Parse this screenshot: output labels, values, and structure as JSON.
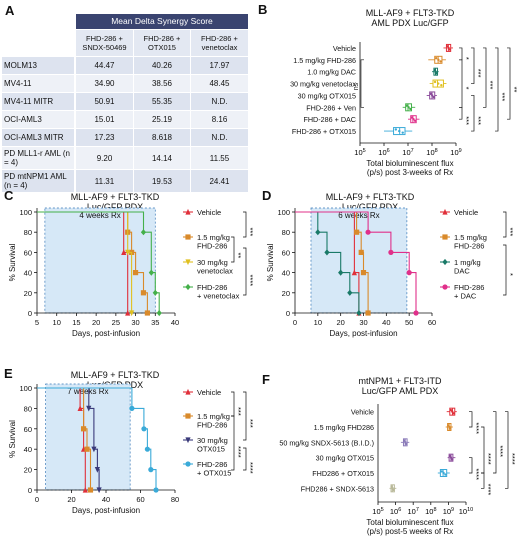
{
  "panels": {
    "A": {
      "letter": "A",
      "header": "Mean Delta Synergy Score",
      "columns": [
        "FHD-286 + SNDX-50469",
        "FHD-286 + OTX015",
        "FHD-286 + venetoclax"
      ],
      "rows": [
        {
          "label": "MOLM13",
          "values": [
            "44.47",
            "40.26",
            "17.97"
          ]
        },
        {
          "label": "MV4-11",
          "values": [
            "34.90",
            "38.56",
            "48.45"
          ]
        },
        {
          "label": "MV4-11 MITR",
          "values": [
            "50.91",
            "55.35",
            "N.D."
          ]
        },
        {
          "label": "OCI-AML3",
          "values": [
            "15.01",
            "25.19",
            "8.16"
          ]
        },
        {
          "label": "OCI-AML3 MITR",
          "values": [
            "17.23",
            "8.618",
            "N.D."
          ]
        },
        {
          "label": "PD MLL1-r AML (n = 4)",
          "values": [
            "9.20",
            "14.14",
            "11.55"
          ]
        },
        {
          "label": "PD mtNPM1 AML (n = 4)",
          "values": [
            "11.31",
            "19.53",
            "24.41"
          ]
        }
      ]
    }
  },
  "chart_data": [
    {
      "panel": "B",
      "type": "box",
      "title": "MLL-AF9 + FLT3-TKD AML PDX Luc/GFP",
      "xlabel": "Total bioluminescent flux (p/s) post 3-weeks of Rx",
      "x_scale": "log",
      "xlim": [
        100000,
        1000000000
      ],
      "x_ticks": [
        "10^5",
        "10^6",
        "10^7",
        "10^8",
        "10^9"
      ],
      "groups": [
        {
          "name": "Vehicle",
          "color": "#e0303a",
          "min": 300000000,
          "q1": 400000000,
          "median": 480000000,
          "q3": 600000000,
          "max": 750000000
        },
        {
          "name": "1.5 mg/kg FHD-286",
          "color": "#d98a2b",
          "min": 70000000,
          "q1": 130000000,
          "median": 180000000,
          "q3": 260000000,
          "max": 380000000
        },
        {
          "name": "1.0 mg/kg DAC",
          "color": "#1a7a68",
          "min": 100000000,
          "q1": 120000000,
          "median": 140000000,
          "q3": 170000000,
          "max": 190000000
        },
        {
          "name": "30 mg/kg venetoclax",
          "color": "#e0c020",
          "min": 80000000,
          "q1": 110000000,
          "median": 170000000,
          "q3": 300000000,
          "max": 400000000
        },
        {
          "name": "30 mg/kg OTX015",
          "color": "#8a4a9a",
          "min": 60000000,
          "q1": 80000000,
          "median": 100000000,
          "q3": 130000000,
          "max": 160000000
        },
        {
          "name": "FHD-286 + Ven",
          "color": "#44b04a",
          "min": 6000000,
          "q1": 8000000,
          "median": 10000000,
          "q3": 14000000,
          "max": 20000000
        },
        {
          "name": "FHD-286 + DAC",
          "color": "#e0308a",
          "min": 10000000,
          "q1": 13000000,
          "median": 16000000,
          "q3": 22000000,
          "max": 30000000
        },
        {
          "name": "FHD-286 + OTX015",
          "color": "#3aaad8",
          "min": 1000000,
          "q1": 2500000,
          "median": 4500000,
          "q3": 7500000,
          "max": 15000000
        }
      ],
      "significance": [
        "*",
        "***",
        "***",
        "***",
        "*",
        "***",
        "**",
        "ns",
        "***"
      ]
    },
    {
      "panel": "C",
      "type": "survival",
      "title": "MLL-AF9 + FLT3-TKD Luc/GFP PDX",
      "xlabel": "Days, post-infusion",
      "ylabel": "% Survival",
      "xlim": [
        5,
        40
      ],
      "ylim": [
        0,
        100
      ],
      "x_ticks": [
        5,
        10,
        15,
        20,
        25,
        30,
        35,
        40
      ],
      "y_ticks": [
        0,
        20,
        40,
        60,
        80,
        100
      ],
      "treatment_label": "4 weeks Rx",
      "treatment_range": [
        7,
        35
      ],
      "series": [
        {
          "name": "Vehicle",
          "color": "#e0303a",
          "marker": "triangle",
          "points": [
            [
              5,
              100
            ],
            [
              27,
              100
            ],
            [
              27,
              60
            ],
            [
              28,
              60
            ],
            [
              28,
              0
            ]
          ]
        },
        {
          "name": "1.5 mg/kg FHD-286",
          "color": "#d98a2b",
          "marker": "square",
          "points": [
            [
              5,
              100
            ],
            [
              28,
              100
            ],
            [
              28,
              80
            ],
            [
              29,
              80
            ],
            [
              29,
              60
            ],
            [
              30,
              60
            ],
            [
              30,
              40
            ],
            [
              32,
              40
            ],
            [
              32,
              20
            ],
            [
              33,
              20
            ],
            [
              33,
              0
            ]
          ]
        },
        {
          "name": "30 mg/kg venetoclax",
          "color": "#e0c020",
          "marker": "triangle-down",
          "points": [
            [
              5,
              100
            ],
            [
              28,
              100
            ],
            [
              28,
              60
            ],
            [
              29,
              60
            ],
            [
              29,
              0
            ]
          ]
        },
        {
          "name": "FHD-286 + venetoclax",
          "color": "#44b04a",
          "marker": "diamond",
          "points": [
            [
              5,
              100
            ],
            [
              32,
              100
            ],
            [
              32,
              80
            ],
            [
              34,
              80
            ],
            [
              34,
              40
            ],
            [
              35,
              40
            ],
            [
              35,
              20
            ],
            [
              36,
              20
            ],
            [
              36,
              0
            ]
          ]
        }
      ],
      "significance": [
        "***",
        "***",
        "**",
        "****"
      ]
    },
    {
      "panel": "D",
      "type": "survival",
      "title": "MLL-AF9 + FLT3-TKD Luc/GFP PDX",
      "xlabel": "Days, post-infusion",
      "ylabel": "% Survival",
      "xlim": [
        0,
        60
      ],
      "ylim": [
        0,
        100
      ],
      "x_ticks": [
        0,
        10,
        20,
        30,
        40,
        50,
        60
      ],
      "y_ticks": [
        0,
        20,
        40,
        60,
        80,
        100
      ],
      "treatment_label": "6 weeks Rx",
      "treatment_range": [
        7,
        49
      ],
      "series": [
        {
          "name": "Vehicle",
          "color": "#e0303a",
          "marker": "triangle",
          "points": [
            [
              0,
              100
            ],
            [
              26,
              100
            ],
            [
              26,
              40
            ],
            [
              28,
              40
            ],
            [
              28,
              0
            ]
          ]
        },
        {
          "name": "1.5 mg/kg FHD-286",
          "color": "#d98a2b",
          "marker": "square",
          "points": [
            [
              0,
              100
            ],
            [
              27,
              100
            ],
            [
              27,
              80
            ],
            [
              29,
              80
            ],
            [
              29,
              60
            ],
            [
              30,
              60
            ],
            [
              30,
              40
            ],
            [
              32,
              40
            ],
            [
              32,
              0
            ]
          ]
        },
        {
          "name": "1 mg/kg DAC",
          "color": "#1a7a68",
          "marker": "diamond",
          "points": [
            [
              0,
              100
            ],
            [
              10,
              100
            ],
            [
              10,
              80
            ],
            [
              14,
              80
            ],
            [
              14,
              60
            ],
            [
              20,
              60
            ],
            [
              20,
              40
            ],
            [
              24,
              40
            ],
            [
              24,
              20
            ],
            [
              28,
              20
            ],
            [
              28,
              0
            ]
          ]
        },
        {
          "name": "FHD-286 + DAC",
          "color": "#e0308a",
          "marker": "circle",
          "points": [
            [
              0,
              100
            ],
            [
              32,
              100
            ],
            [
              32,
              80
            ],
            [
              42,
              80
            ],
            [
              42,
              60
            ],
            [
              50,
              60
            ],
            [
              50,
              40
            ],
            [
              53,
              40
            ],
            [
              53,
              0
            ]
          ]
        }
      ],
      "significance": [
        "***",
        "**",
        "*"
      ]
    },
    {
      "panel": "E",
      "type": "survival",
      "title": "MLL-AF9 + FLT3-TKD Luc/GFP PDX",
      "xlabel": "Days, post-infusion",
      "ylabel": "% Survival",
      "xlim": [
        0,
        80
      ],
      "ylim": [
        0,
        100
      ],
      "x_ticks": [
        0,
        20,
        40,
        60,
        80
      ],
      "y_ticks": [
        0,
        20,
        40,
        60,
        80,
        100
      ],
      "treatment_label": "7 weeks Rx",
      "treatment_range": [
        5,
        54
      ],
      "series": [
        {
          "name": "Vehicle",
          "color": "#e0303a",
          "marker": "triangle",
          "points": [
            [
              0,
              100
            ],
            [
              25,
              100
            ],
            [
              25,
              80
            ],
            [
              27,
              80
            ],
            [
              27,
              40
            ],
            [
              28,
              40
            ],
            [
              28,
              0
            ]
          ]
        },
        {
          "name": "1.5 mg/kg FHD-286",
          "color": "#d98a2b",
          "marker": "square",
          "points": [
            [
              0,
              100
            ],
            [
              27,
              100
            ],
            [
              27,
              60
            ],
            [
              29,
              60
            ],
            [
              29,
              40
            ],
            [
              31,
              40
            ],
            [
              31,
              0
            ]
          ]
        },
        {
          "name": "30 mg/kg OTX015",
          "color": "#3a3a7a",
          "marker": "triangle-down",
          "points": [
            [
              0,
              100
            ],
            [
              30,
              100
            ],
            [
              30,
              80
            ],
            [
              33,
              80
            ],
            [
              33,
              40
            ],
            [
              35,
              40
            ],
            [
              35,
              20
            ],
            [
              36,
              20
            ],
            [
              36,
              0
            ]
          ]
        },
        {
          "name": "FHD-286 + OTX015",
          "color": "#3aaad8",
          "marker": "circle",
          "points": [
            [
              0,
              100
            ],
            [
              55,
              100
            ],
            [
              55,
              80
            ],
            [
              62,
              80
            ],
            [
              62,
              60
            ],
            [
              64,
              60
            ],
            [
              64,
              40
            ],
            [
              66,
              40
            ],
            [
              66,
              20
            ],
            [
              69,
              20
            ],
            [
              69,
              0
            ]
          ]
        }
      ],
      "significance": [
        "***",
        "***",
        "****",
        "****"
      ]
    },
    {
      "panel": "F",
      "type": "box",
      "title": "mtNPM1 + FLT3-ITD Luc/GFP AML PDX",
      "xlabel": "Total bioluminescent flux (p/s) post-5 weeks of Rx",
      "x_scale": "log",
      "xlim": [
        100000,
        10000000000
      ],
      "x_ticks": [
        "10^5",
        "10^6",
        "10^7",
        "10^8",
        "10^9",
        "10^10"
      ],
      "groups": [
        {
          "name": "Vehicle",
          "color": "#e0303a",
          "min": 800000000,
          "q1": 1200000000,
          "median": 1700000000,
          "q3": 2300000000,
          "max": 3000000000
        },
        {
          "name": "1.5 mg/kg FHD286",
          "color": "#d98a2b",
          "min": 700000000,
          "q1": 900000000,
          "median": 1100000000,
          "q3": 1400000000,
          "max": 1800000000
        },
        {
          "name": "50 mg/kg SNDX-5613 (B.I.D.)",
          "color": "#8a7ab8",
          "min": 2000000,
          "q1": 2800000,
          "median": 3500000,
          "q3": 4500000,
          "max": 6000000
        },
        {
          "name": "30 mg/kg OTX015",
          "color": "#8a4a9a",
          "min": 900000000,
          "q1": 1100000000,
          "median": 1400000000,
          "q3": 1800000000,
          "max": 2500000000
        },
        {
          "name": "FHD286 + OTX015",
          "color": "#3aaad8",
          "min": 250000000,
          "q1": 350000000,
          "median": 500000000,
          "q3": 800000000,
          "max": 1200000000
        },
        {
          "name": "FHD286 + SNDX-5613",
          "color": "#b8b898",
          "min": 450000,
          "q1": 550000,
          "median": 650000,
          "q3": 850000,
          "max": 1100000
        }
      ],
      "significance": [
        "****",
        "****",
        "****",
        "****",
        "****",
        "****"
      ]
    }
  ]
}
